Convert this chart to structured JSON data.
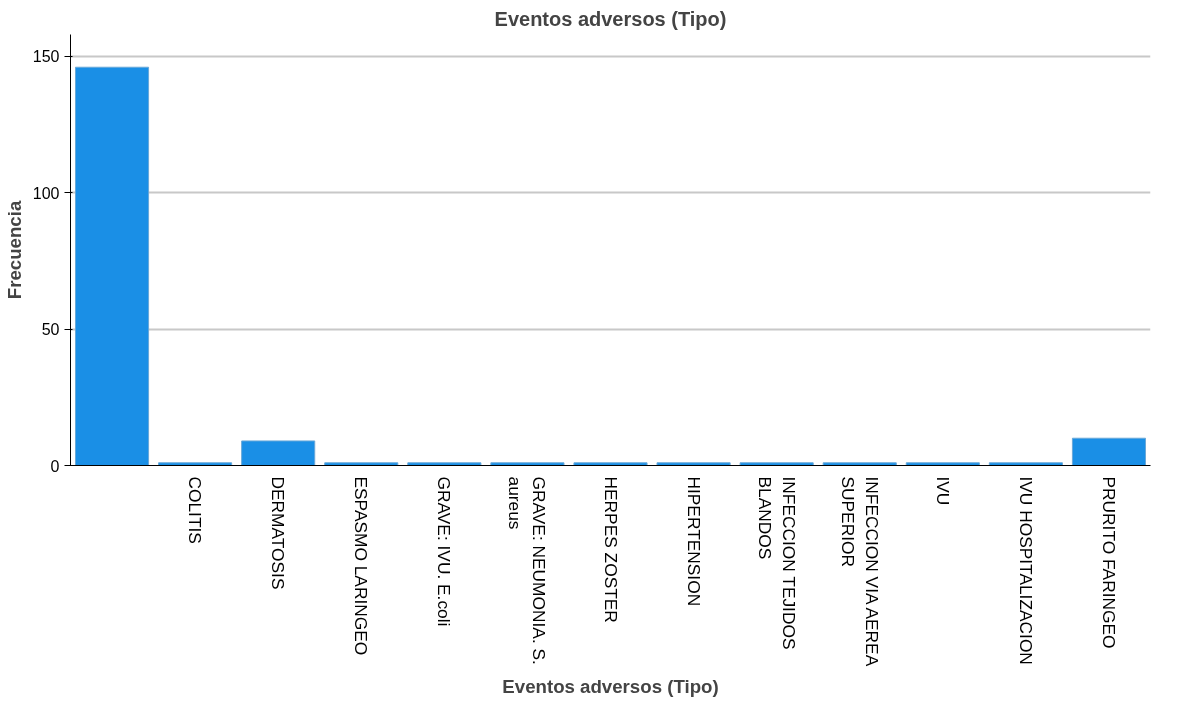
{
  "chart_data": {
    "type": "bar",
    "title": "Eventos adversos (Tipo)",
    "xlabel": "Eventos adversos (Tipo)",
    "ylabel": "Frecuencia",
    "categories": [
      null,
      "COLITIS",
      "DERMATOSIS",
      "ESPASMO LARINGEO",
      "GRAVE: IVU. E.coli",
      "GRAVE: NEUMONIA. S. aureus",
      "HERPES ZOSTER",
      "HIPERTENSION",
      "INFECCION TEJIDOS BLANDOS",
      "INFECCION VIA AEREA SUPERIOR",
      "IVU",
      "IVU HOSPITALIZACION",
      "PRURITO FARINGEO"
    ],
    "values": [
      146,
      1,
      9,
      1,
      1,
      1,
      1,
      1,
      1,
      1,
      1,
      1,
      10
    ],
    "color": "#1a8fe6",
    "ylim": [
      0,
      158
    ],
    "yticks": [
      0,
      50,
      100,
      150
    ],
    "grid": "y"
  }
}
